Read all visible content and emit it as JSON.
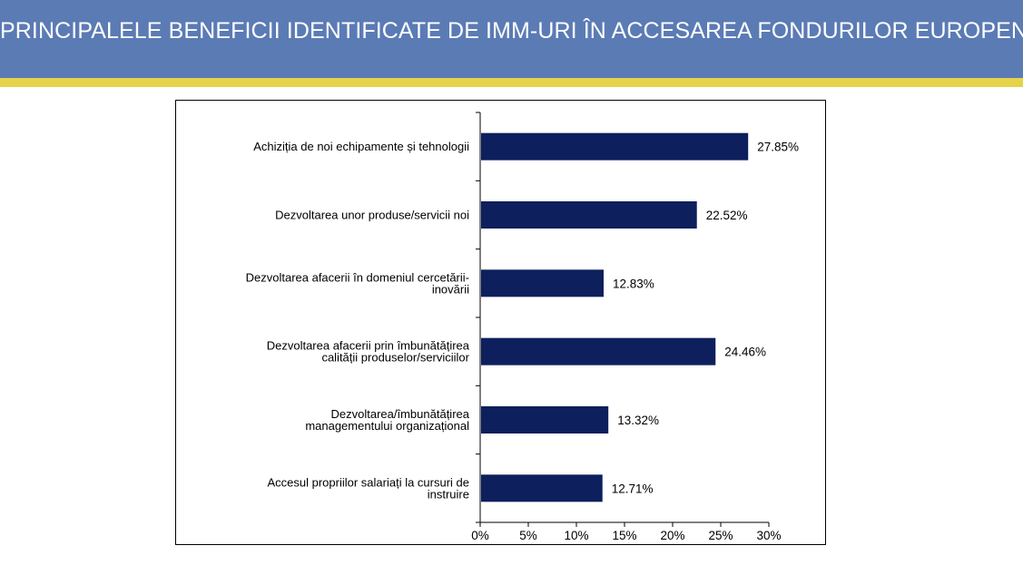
{
  "slide": {
    "title": "PRINCIPALELE BENEFICII IDENTIFICATE DE IMM-URI ÎN ACCESAREA FONDURILOR EUROPENE"
  },
  "colors": {
    "header_bg": "#5b7bb5",
    "header_stripe": "#e5d44a",
    "bar": "#0d1f5c"
  },
  "chart_data": {
    "type": "bar",
    "orientation": "horizontal",
    "categories": [
      [
        "Achiziția de noi echipamente și tehnologii"
      ],
      [
        "Dezvoltarea unor produse/servicii noi"
      ],
      [
        "Dezvoltarea afacerii în domeniul cercetării-",
        "inovării"
      ],
      [
        "Dezvoltarea afacerii prin îmbunătățirea",
        "calității produselor/serviciilor"
      ],
      [
        "Dezvoltarea/îmbunătățirea",
        "managementului organizațional"
      ],
      [
        "Accesul propriilor salariați la cursuri de",
        "instruire"
      ]
    ],
    "values": [
      27.85,
      22.52,
      12.83,
      24.46,
      13.32,
      12.71
    ],
    "value_labels": [
      "27.85%",
      "22.52%",
      "12.83%",
      "24.46%",
      "13.32%",
      "12.71%"
    ],
    "xlim": [
      0,
      30
    ],
    "x_ticks": [
      0,
      5,
      10,
      15,
      20,
      25,
      30
    ],
    "x_tick_labels": [
      "0%",
      "5%",
      "10%",
      "15%",
      "20%",
      "25%",
      "30%"
    ],
    "grid": false,
    "legend": "none"
  }
}
